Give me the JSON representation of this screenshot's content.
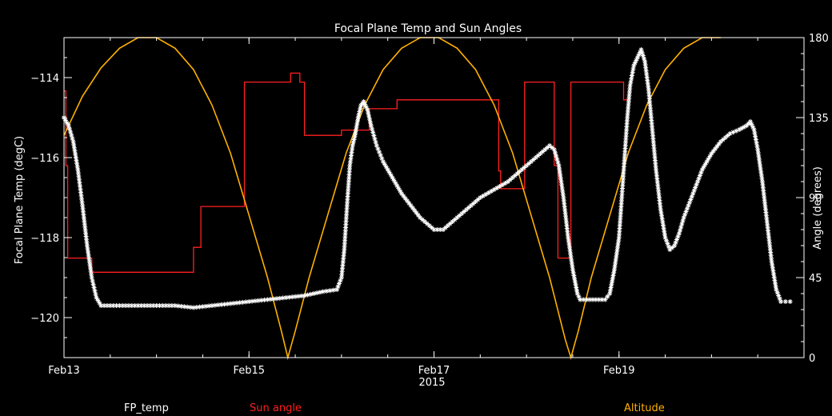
{
  "chart_data": {
    "type": "line",
    "title": "Focal Plane Temp and Sun Angles",
    "xlabel": "2015",
    "ylabel_left": "Focal Plane Temp (degC)",
    "ylabel_right": "Angle (degrees)",
    "x_unit": "days since Feb13 00:00 (2015)",
    "xlim": [
      0,
      8
    ],
    "ylim_left": [
      -121,
      -113
    ],
    "ylim_right": [
      0,
      180
    ],
    "x_ticks": [
      {
        "x": 0,
        "label": "Feb13"
      },
      {
        "x": 2,
        "label": "Feb15"
      },
      {
        "x": 4,
        "label": "Feb17"
      },
      {
        "x": 6,
        "label": "Feb19"
      }
    ],
    "y_ticks_left": [
      {
        "y": -114,
        "label": "−114"
      },
      {
        "y": -116,
        "label": "−116"
      },
      {
        "y": -118,
        "label": "−118"
      },
      {
        "y": -120,
        "label": "−120"
      }
    ],
    "y_ticks_right": [
      {
        "y": 0,
        "label": "0"
      },
      {
        "y": 45,
        "label": "45"
      },
      {
        "y": 90,
        "label": "90"
      },
      {
        "y": 135,
        "label": "135"
      },
      {
        "y": 180,
        "label": "180"
      }
    ],
    "legend": {
      "placement": "bottom"
    },
    "colors": {
      "fp_temp": "#ffffff",
      "sun_angle": "#ff2020",
      "altitude": "#ffb000",
      "axes": "#ffffff",
      "background": "#000000"
    },
    "series": [
      {
        "name": "FP_temp",
        "axis": "left",
        "style": "asterisk",
        "points": [
          [
            0.0,
            -115.0
          ],
          [
            0.05,
            -115.2
          ],
          [
            0.1,
            -115.6
          ],
          [
            0.15,
            -116.3
          ],
          [
            0.2,
            -117.2
          ],
          [
            0.25,
            -118.2
          ],
          [
            0.3,
            -119.0
          ],
          [
            0.35,
            -119.5
          ],
          [
            0.4,
            -119.7
          ],
          [
            0.6,
            -119.7
          ],
          [
            0.8,
            -119.7
          ],
          [
            1.0,
            -119.7
          ],
          [
            1.2,
            -119.7
          ],
          [
            1.4,
            -119.75
          ],
          [
            1.6,
            -119.7
          ],
          [
            1.8,
            -119.65
          ],
          [
            2.0,
            -119.6
          ],
          [
            2.2,
            -119.55
          ],
          [
            2.4,
            -119.5
          ],
          [
            2.6,
            -119.45
          ],
          [
            2.8,
            -119.35
          ],
          [
            2.95,
            -119.3
          ],
          [
            3.0,
            -119.0
          ],
          [
            3.03,
            -118.3
          ],
          [
            3.06,
            -117.2
          ],
          [
            3.09,
            -116.2
          ],
          [
            3.12,
            -115.7
          ],
          [
            3.15,
            -115.4
          ],
          [
            3.18,
            -115.0
          ],
          [
            3.21,
            -114.7
          ],
          [
            3.24,
            -114.6
          ],
          [
            3.28,
            -114.8
          ],
          [
            3.32,
            -115.2
          ],
          [
            3.38,
            -115.7
          ],
          [
            3.45,
            -116.1
          ],
          [
            3.55,
            -116.5
          ],
          [
            3.65,
            -116.9
          ],
          [
            3.75,
            -117.2
          ],
          [
            3.85,
            -117.5
          ],
          [
            3.95,
            -117.7
          ],
          [
            4.0,
            -117.8
          ],
          [
            4.1,
            -117.8
          ],
          [
            4.2,
            -117.6
          ],
          [
            4.35,
            -117.3
          ],
          [
            4.5,
            -117.0
          ],
          [
            4.65,
            -116.8
          ],
          [
            4.8,
            -116.6
          ],
          [
            4.95,
            -116.3
          ],
          [
            5.1,
            -116.0
          ],
          [
            5.2,
            -115.8
          ],
          [
            5.25,
            -115.7
          ],
          [
            5.3,
            -115.8
          ],
          [
            5.35,
            -116.2
          ],
          [
            5.4,
            -117.0
          ],
          [
            5.45,
            -118.0
          ],
          [
            5.5,
            -118.8
          ],
          [
            5.55,
            -119.4
          ],
          [
            5.58,
            -119.55
          ],
          [
            5.65,
            -119.55
          ],
          [
            5.75,
            -119.55
          ],
          [
            5.85,
            -119.55
          ],
          [
            5.9,
            -119.4
          ],
          [
            5.95,
            -118.8
          ],
          [
            6.0,
            -118.0
          ],
          [
            6.03,
            -117.0
          ],
          [
            6.06,
            -116.0
          ],
          [
            6.09,
            -115.0
          ],
          [
            6.12,
            -114.2
          ],
          [
            6.16,
            -113.7
          ],
          [
            6.2,
            -113.5
          ],
          [
            6.24,
            -113.3
          ],
          [
            6.28,
            -113.6
          ],
          [
            6.32,
            -114.3
          ],
          [
            6.36,
            -115.3
          ],
          [
            6.4,
            -116.3
          ],
          [
            6.45,
            -117.3
          ],
          [
            6.5,
            -118.0
          ],
          [
            6.55,
            -118.3
          ],
          [
            6.6,
            -118.2
          ],
          [
            6.65,
            -117.9
          ],
          [
            6.7,
            -117.5
          ],
          [
            6.8,
            -116.9
          ],
          [
            6.9,
            -116.3
          ],
          [
            7.0,
            -115.9
          ],
          [
            7.1,
            -115.6
          ],
          [
            7.2,
            -115.4
          ],
          [
            7.3,
            -115.3
          ],
          [
            7.38,
            -115.2
          ],
          [
            7.42,
            -115.1
          ],
          [
            7.46,
            -115.3
          ],
          [
            7.5,
            -115.8
          ],
          [
            7.55,
            -116.6
          ],
          [
            7.6,
            -117.6
          ],
          [
            7.65,
            -118.6
          ],
          [
            7.7,
            -119.3
          ],
          [
            7.75,
            -119.6
          ],
          [
            7.8,
            -119.6
          ],
          [
            7.85,
            -119.6
          ]
        ]
      },
      {
        "name": "Sun angle",
        "axis": "right",
        "style": "step",
        "points": [
          [
            0.0,
            150
          ],
          [
            0.02,
            150
          ],
          [
            0.02,
            108
          ],
          [
            0.04,
            108
          ],
          [
            0.04,
            56
          ],
          [
            0.3,
            56
          ],
          [
            0.3,
            48
          ],
          [
            1.4,
            48
          ],
          [
            1.4,
            62
          ],
          [
            1.48,
            62
          ],
          [
            1.48,
            85
          ],
          [
            1.95,
            85
          ],
          [
            1.95,
            155
          ],
          [
            2.45,
            155
          ],
          [
            2.45,
            160
          ],
          [
            2.55,
            160
          ],
          [
            2.55,
            155
          ],
          [
            2.6,
            155
          ],
          [
            2.6,
            125
          ],
          [
            3.0,
            125
          ],
          [
            3.0,
            128
          ],
          [
            3.3,
            128
          ],
          [
            3.3,
            140
          ],
          [
            3.6,
            140
          ],
          [
            3.6,
            145
          ],
          [
            4.7,
            145
          ],
          [
            4.7,
            105
          ],
          [
            4.72,
            105
          ],
          [
            4.72,
            95
          ],
          [
            4.98,
            95
          ],
          [
            4.98,
            155
          ],
          [
            5.1,
            155
          ],
          [
            5.1,
            155
          ],
          [
            5.3,
            155
          ],
          [
            5.3,
            108
          ],
          [
            5.34,
            108
          ],
          [
            5.34,
            56
          ],
          [
            5.48,
            56
          ],
          [
            5.48,
            155
          ],
          [
            6.05,
            155
          ],
          [
            6.05,
            145
          ],
          [
            6.1,
            145
          ]
        ]
      },
      {
        "name": "Altitude",
        "axis": "right",
        "style": "line",
        "points": [
          [
            0.0,
            125
          ],
          [
            0.2,
            147
          ],
          [
            0.4,
            163
          ],
          [
            0.6,
            174
          ],
          [
            0.8,
            180
          ],
          [
            1.0,
            180
          ],
          [
            1.2,
            174
          ],
          [
            1.4,
            162
          ],
          [
            1.6,
            142
          ],
          [
            1.8,
            115
          ],
          [
            2.0,
            80
          ],
          [
            2.2,
            45
          ],
          [
            2.35,
            15
          ],
          [
            2.42,
            0
          ],
          [
            2.5,
            15
          ],
          [
            2.65,
            45
          ],
          [
            2.85,
            80
          ],
          [
            3.05,
            115
          ],
          [
            3.25,
            142
          ],
          [
            3.45,
            162
          ],
          [
            3.65,
            174
          ],
          [
            3.85,
            180
          ],
          [
            4.05,
            180
          ],
          [
            4.25,
            174
          ],
          [
            4.45,
            162
          ],
          [
            4.65,
            142
          ],
          [
            4.85,
            115
          ],
          [
            5.05,
            80
          ],
          [
            5.25,
            45
          ],
          [
            5.42,
            10
          ],
          [
            5.48,
            0
          ],
          [
            5.56,
            15
          ],
          [
            5.7,
            45
          ],
          [
            5.9,
            80
          ],
          [
            6.1,
            115
          ],
          [
            6.3,
            142
          ],
          [
            6.5,
            162
          ],
          [
            6.7,
            174
          ],
          [
            6.9,
            180
          ],
          [
            7.1,
            180
          ]
        ]
      }
    ]
  }
}
